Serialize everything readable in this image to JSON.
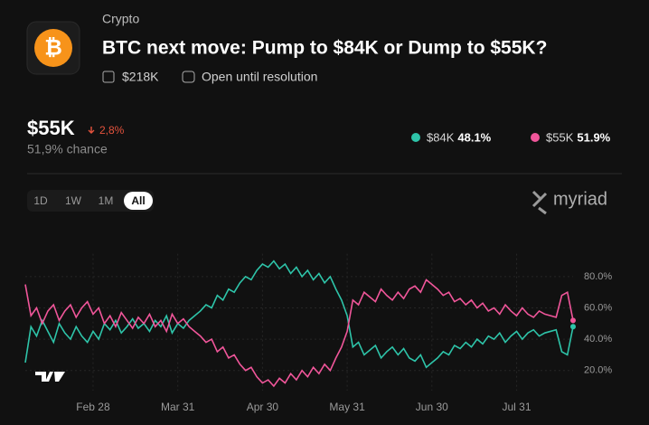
{
  "header": {
    "icon": "₿",
    "category": "Crypto",
    "title": "BTC next move: Pump to $84K or Dump to $55K?",
    "volume": "$218K",
    "status": "Open until resolution"
  },
  "summary": {
    "outcome": "$55K",
    "change": "2,8%",
    "chance": "51,9% chance"
  },
  "tabs": [
    "1D",
    "1W",
    "1M",
    "All"
  ],
  "brand": "myriad",
  "chart_data": {
    "type": "line",
    "categories": [
      null,
      null,
      null,
      null,
      null,
      null,
      null,
      null,
      null,
      null,
      null,
      null,
      "Feb 28",
      null,
      null,
      null,
      null,
      null,
      null,
      null,
      null,
      null,
      null,
      null,
      null,
      null,
      null,
      "Mar 31",
      null,
      null,
      null,
      null,
      null,
      null,
      null,
      null,
      null,
      null,
      null,
      null,
      null,
      null,
      "Apr 30",
      null,
      null,
      null,
      null,
      null,
      null,
      null,
      null,
      null,
      null,
      null,
      null,
      null,
      null,
      "May 31",
      null,
      null,
      null,
      null,
      null,
      null,
      null,
      null,
      null,
      null,
      null,
      null,
      null,
      null,
      "Jun 30",
      null,
      null,
      null,
      null,
      null,
      null,
      null,
      null,
      null,
      null,
      null,
      null,
      null,
      null,
      "Jul 31",
      null,
      null,
      null,
      null,
      null,
      null,
      null,
      null,
      null,
      null
    ],
    "series": [
      {
        "name": "$84K",
        "share": "48.1%",
        "color": "#2ec4a9",
        "values": [
          25,
          48,
          42,
          52,
          45,
          38,
          50,
          44,
          40,
          48,
          42,
          38,
          45,
          40,
          50,
          46,
          52,
          44,
          48,
          53,
          47,
          50,
          45,
          52,
          48,
          55,
          44,
          50,
          47,
          52,
          55,
          58,
          62,
          60,
          68,
          65,
          72,
          70,
          76,
          80,
          78,
          84,
          88,
          86,
          90,
          85,
          88,
          82,
          86,
          80,
          84,
          78,
          82,
          76,
          80,
          72,
          65,
          55,
          35,
          38,
          30,
          33,
          36,
          28,
          32,
          35,
          30,
          34,
          28,
          26,
          30,
          22,
          25,
          28,
          32,
          30,
          36,
          34,
          38,
          35,
          40,
          37,
          42,
          40,
          44,
          38,
          42,
          45,
          40,
          44,
          46,
          42,
          44,
          45,
          46,
          32,
          30,
          48
        ]
      },
      {
        "name": "$55K",
        "share": "51.9%",
        "color": "#f0569a",
        "values": [
          75,
          55,
          60,
          50,
          58,
          62,
          52,
          58,
          62,
          54,
          60,
          64,
          56,
          60,
          50,
          55,
          48,
          57,
          52,
          47,
          54,
          50,
          56,
          48,
          52,
          45,
          56,
          50,
          53,
          48,
          45,
          42,
          38,
          40,
          32,
          35,
          28,
          30,
          24,
          20,
          22,
          16,
          12,
          14,
          10,
          15,
          12,
          18,
          14,
          20,
          16,
          22,
          18,
          24,
          20,
          28,
          35,
          45,
          65,
          62,
          70,
          67,
          64,
          72,
          68,
          65,
          70,
          66,
          72,
          74,
          70,
          78,
          75,
          72,
          68,
          70,
          64,
          66,
          62,
          65,
          60,
          63,
          58,
          60,
          56,
          62,
          58,
          55,
          60,
          56,
          54,
          58,
          56,
          55,
          54,
          68,
          70,
          52
        ]
      }
    ],
    "ylim": [
      10,
      90
    ],
    "yticks": [
      {
        "value": 20,
        "label": "20.0%"
      },
      {
        "value": 40,
        "label": "40.0%"
      },
      {
        "value": 60,
        "label": "60.0%"
      },
      {
        "value": 80,
        "label": "80.0%"
      }
    ],
    "grid": true
  }
}
